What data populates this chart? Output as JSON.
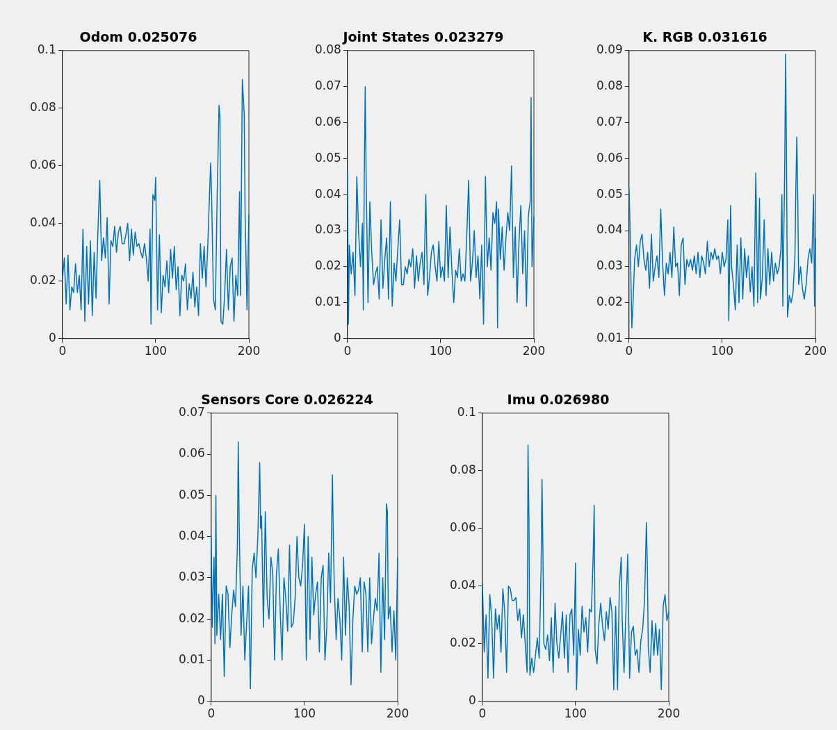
{
  "chart_data": [
    {
      "type": "line",
      "title": "Odom 0.025076",
      "xlim": [
        0,
        200
      ],
      "xticks": [
        0,
        100,
        200
      ],
      "ylim": [
        0,
        0.1
      ],
      "yticks": [
        0,
        0.02,
        0.04,
        0.06,
        0.08,
        0.1
      ],
      "grid": false,
      "legend": false,
      "x": [
        0,
        2,
        4,
        6,
        8,
        10,
        12,
        14,
        16,
        18,
        20,
        22,
        24,
        26,
        28,
        30,
        32,
        34,
        36,
        38,
        40,
        42,
        44,
        46,
        48,
        50,
        52,
        54,
        56,
        58,
        60,
        62,
        64,
        66,
        68,
        70,
        72,
        74,
        76,
        78,
        80,
        82,
        84,
        86,
        88,
        90,
        92,
        94,
        95,
        97,
        99,
        100,
        102,
        104,
        106,
        108,
        110,
        112,
        114,
        116,
        118,
        120,
        122,
        124,
        126,
        128,
        130,
        132,
        134,
        136,
        138,
        140,
        142,
        144,
        146,
        148,
        150,
        152,
        154,
        156,
        157,
        159,
        160,
        162,
        164,
        166,
        168,
        169,
        170,
        172,
        174,
        176,
        178,
        180,
        182,
        184,
        186,
        188,
        190,
        191,
        193,
        195,
        196,
        198,
        200
      ],
      "series": [
        {
          "color": "#0072bd",
          "values": [
            0.021,
            0.028,
            0.012,
            0.029,
            0.01,
            0.018,
            0.016,
            0.026,
            0.016,
            0.022,
            0.01,
            0.038,
            0.006,
            0.032,
            0.012,
            0.034,
            0.008,
            0.03,
            0.014,
            0.037,
            0.055,
            0.027,
            0.035,
            0.028,
            0.042,
            0.012,
            0.034,
            0.032,
            0.039,
            0.03,
            0.037,
            0.039,
            0.033,
            0.033,
            0.036,
            0.04,
            0.027,
            0.038,
            0.029,
            0.037,
            0.032,
            0.033,
            0.03,
            0.028,
            0.033,
            0.028,
            0.02,
            0.038,
            0.005,
            0.05,
            0.048,
            0.056,
            0.01,
            0.036,
            0.009,
            0.022,
            0.018,
            0.027,
            0.016,
            0.031,
            0.021,
            0.032,
            0.017,
            0.025,
            0.008,
            0.022,
            0.02,
            0.026,
            0.01,
            0.019,
            0.014,
            0.023,
            0.011,
            0.018,
            0.008,
            0.033,
            0.021,
            0.032,
            0.018,
            0.033,
            0.043,
            0.061,
            0.05,
            0.014,
            0.01,
            0.05,
            0.081,
            0.077,
            0.006,
            0.005,
            0.015,
            0.031,
            0.01,
            0.025,
            0.028,
            0.006,
            0.022,
            0.015,
            0.051,
            0.015,
            0.09,
            0.078,
            0.042,
            0.01,
            0.043
          ]
        }
      ]
    },
    {
      "type": "line",
      "title": "Joint States 0.023279",
      "xlim": [
        0,
        200
      ],
      "xticks": [
        0,
        100,
        200
      ],
      "ylim": [
        0,
        0.08
      ],
      "yticks": [
        0,
        0.01,
        0.02,
        0.03,
        0.04,
        0.05,
        0.06,
        0.07,
        0.08
      ],
      "grid": false,
      "legend": false,
      "x": [
        0,
        1,
        2,
        4,
        6,
        8,
        10,
        12,
        14,
        16,
        17,
        18,
        19,
        20,
        22,
        24,
        26,
        28,
        30,
        32,
        34,
        36,
        38,
        40,
        42,
        44,
        46,
        48,
        50,
        52,
        54,
        56,
        58,
        60,
        62,
        64,
        66,
        68,
        70,
        72,
        74,
        76,
        78,
        80,
        82,
        84,
        86,
        88,
        90,
        92,
        94,
        96,
        98,
        100,
        102,
        104,
        106,
        108,
        110,
        112,
        114,
        116,
        118,
        120,
        122,
        124,
        126,
        128,
        130,
        132,
        134,
        136,
        138,
        140,
        142,
        144,
        146,
        148,
        150,
        152,
        154,
        156,
        158,
        160,
        161,
        162,
        164,
        166,
        168,
        170,
        172,
        174,
        176,
        178,
        180,
        182,
        184,
        186,
        188,
        190,
        192,
        194,
        196,
        197,
        198,
        200
      ],
      "series": [
        {
          "color": "#0072bd",
          "values": [
            0.046,
            0.004,
            0.026,
            0.018,
            0.024,
            0.012,
            0.045,
            0.029,
            0.02,
            0.032,
            0.008,
            0.045,
            0.07,
            0.045,
            0.01,
            0.038,
            0.024,
            0.015,
            0.018,
            0.02,
            0.011,
            0.033,
            0.014,
            0.022,
            0.028,
            0.011,
            0.038,
            0.009,
            0.021,
            0.016,
            0.025,
            0.033,
            0.015,
            0.015,
            0.02,
            0.018,
            0.022,
            0.02,
            0.025,
            0.014,
            0.023,
            0.016,
            0.021,
            0.024,
            0.015,
            0.04,
            0.012,
            0.017,
            0.024,
            0.026,
            0.02,
            0.016,
            0.027,
            0.017,
            0.02,
            0.016,
            0.037,
            0.017,
            0.031,
            0.019,
            0.01,
            0.019,
            0.017,
            0.025,
            0.016,
            0.018,
            0.016,
            0.029,
            0.044,
            0.016,
            0.021,
            0.03,
            0.017,
            0.023,
            0.011,
            0.026,
            0.004,
            0.045,
            0.02,
            0.028,
            0.019,
            0.035,
            0.032,
            0.038,
            0.003,
            0.036,
            0.022,
            0.031,
            0.019,
            0.028,
            0.035,
            0.03,
            0.048,
            0.017,
            0.031,
            0.01,
            0.027,
            0.037,
            0.018,
            0.03,
            0.009,
            0.034,
            0.038,
            0.067,
            0.02,
            0.034
          ]
        }
      ]
    },
    {
      "type": "line",
      "title": "K. RGB 0.031616",
      "xlim": [
        0,
        200
      ],
      "xticks": [
        0,
        100,
        200
      ],
      "ylim": [
        0.01,
        0.09
      ],
      "yticks": [
        0.01,
        0.02,
        0.03,
        0.04,
        0.05,
        0.06,
        0.07,
        0.08,
        0.09
      ],
      "grid": false,
      "legend": false,
      "x": [
        0,
        1,
        2,
        3,
        4,
        6,
        8,
        10,
        12,
        14,
        16,
        18,
        20,
        22,
        24,
        26,
        28,
        30,
        32,
        34,
        36,
        38,
        40,
        42,
        44,
        46,
        48,
        50,
        52,
        54,
        56,
        58,
        60,
        62,
        64,
        66,
        68,
        70,
        72,
        74,
        76,
        78,
        80,
        82,
        84,
        86,
        88,
        90,
        92,
        94,
        96,
        98,
        100,
        102,
        104,
        106,
        107,
        109,
        110,
        112,
        114,
        116,
        118,
        120,
        122,
        124,
        126,
        128,
        130,
        132,
        134,
        136,
        138,
        140,
        141,
        143,
        145,
        147,
        149,
        151,
        153,
        155,
        157,
        159,
        161,
        163,
        164,
        165,
        167,
        168,
        169,
        170,
        172,
        174,
        176,
        178,
        179,
        180,
        181,
        182,
        184,
        186,
        188,
        190,
        192,
        194,
        196,
        198,
        199,
        200
      ],
      "series": [
        {
          "color": "#0072bd",
          "values": [
            0.052,
            0.042,
            0.027,
            0.013,
            0.018,
            0.032,
            0.036,
            0.03,
            0.037,
            0.039,
            0.032,
            0.029,
            0.034,
            0.024,
            0.039,
            0.026,
            0.03,
            0.033,
            0.027,
            0.046,
            0.031,
            0.022,
            0.031,
            0.028,
            0.034,
            0.027,
            0.041,
            0.03,
            0.031,
            0.022,
            0.036,
            0.038,
            0.025,
            0.032,
            0.03,
            0.032,
            0.029,
            0.033,
            0.028,
            0.034,
            0.027,
            0.033,
            0.031,
            0.028,
            0.037,
            0.03,
            0.034,
            0.032,
            0.035,
            0.032,
            0.033,
            0.028,
            0.034,
            0.03,
            0.032,
            0.043,
            0.015,
            0.047,
            0.03,
            0.025,
            0.018,
            0.036,
            0.02,
            0.038,
            0.021,
            0.035,
            0.027,
            0.033,
            0.023,
            0.03,
            0.019,
            0.056,
            0.02,
            0.049,
            0.021,
            0.027,
            0.043,
            0.022,
            0.035,
            0.025,
            0.034,
            0.026,
            0.031,
            0.028,
            0.03,
            0.035,
            0.05,
            0.019,
            0.057,
            0.089,
            0.058,
            0.016,
            0.022,
            0.02,
            0.023,
            0.033,
            0.052,
            0.066,
            0.05,
            0.025,
            0.03,
            0.024,
            0.021,
            0.025,
            0.032,
            0.035,
            0.031,
            0.05,
            0.019,
            0.038
          ]
        }
      ]
    },
    {
      "type": "line",
      "title": "Sensors Core 0.026224",
      "xlim": [
        0,
        200
      ],
      "xticks": [
        0,
        100,
        200
      ],
      "ylim": [
        0,
        0.07
      ],
      "yticks": [
        0,
        0.01,
        0.02,
        0.03,
        0.04,
        0.05,
        0.06,
        0.07
      ],
      "grid": false,
      "legend": false,
      "x": [
        0,
        1,
        2,
        3,
        4,
        5,
        6,
        8,
        10,
        12,
        14,
        16,
        18,
        20,
        22,
        24,
        26,
        28,
        29,
        30,
        32,
        34,
        36,
        38,
        40,
        42,
        44,
        46,
        48,
        50,
        52,
        53,
        54,
        56,
        58,
        60,
        62,
        64,
        66,
        68,
        70,
        72,
        74,
        76,
        78,
        80,
        82,
        84,
        86,
        88,
        90,
        92,
        94,
        96,
        98,
        100,
        102,
        104,
        106,
        108,
        110,
        112,
        114,
        116,
        118,
        120,
        122,
        124,
        126,
        128,
        130,
        131,
        132,
        134,
        136,
        138,
        140,
        142,
        144,
        146,
        148,
        150,
        152,
        154,
        156,
        158,
        160,
        162,
        164,
        166,
        168,
        170,
        172,
        174,
        176,
        178,
        180,
        182,
        184,
        186,
        188,
        189,
        190,
        192,
        194,
        196,
        198,
        200
      ],
      "series": [
        {
          "color": "#0072bd",
          "values": [
            0.04,
            0.018,
            0.028,
            0.035,
            0.014,
            0.05,
            0.016,
            0.026,
            0.015,
            0.026,
            0.006,
            0.028,
            0.026,
            0.013,
            0.021,
            0.027,
            0.023,
            0.037,
            0.063,
            0.043,
            0.016,
            0.028,
            0.01,
            0.019,
            0.028,
            0.003,
            0.032,
            0.036,
            0.03,
            0.04,
            0.058,
            0.042,
            0.045,
            0.018,
            0.046,
            0.025,
            0.02,
            0.035,
            0.031,
            0.01,
            0.031,
            0.037,
            0.022,
            0.01,
            0.03,
            0.025,
            0.017,
            0.038,
            0.018,
            0.019,
            0.025,
            0.04,
            0.03,
            0.028,
            0.033,
            0.043,
            0.01,
            0.04,
            0.015,
            0.035,
            0.021,
            0.026,
            0.029,
            0.012,
            0.03,
            0.033,
            0.01,
            0.018,
            0.036,
            0.024,
            0.055,
            0.04,
            0.028,
            0.015,
            0.025,
            0.02,
            0.01,
            0.035,
            0.016,
            0.03,
            0.023,
            0.004,
            0.02,
            0.028,
            0.026,
            0.027,
            0.03,
            0.012,
            0.029,
            0.026,
            0.012,
            0.03,
            0.014,
            0.02,
            0.025,
            0.022,
            0.036,
            0.007,
            0.03,
            0.015,
            0.048,
            0.046,
            0.02,
            0.023,
            0.012,
            0.022,
            0.01,
            0.035
          ]
        }
      ]
    },
    {
      "type": "line",
      "title": "Imu 0.026980",
      "xlim": [
        0,
        200
      ],
      "xticks": [
        0,
        100,
        200
      ],
      "ylim": [
        0,
        0.1
      ],
      "yticks": [
        0,
        0.02,
        0.04,
        0.06,
        0.08,
        0.1
      ],
      "grid": false,
      "legend": false,
      "x": [
        0,
        1,
        2,
        4,
        6,
        8,
        10,
        12,
        14,
        16,
        18,
        20,
        22,
        24,
        26,
        28,
        30,
        32,
        34,
        36,
        38,
        40,
        42,
        44,
        46,
        48,
        49,
        50,
        51,
        53,
        55,
        57,
        59,
        61,
        63,
        64,
        65,
        66,
        68,
        70,
        72,
        74,
        76,
        78,
        80,
        82,
        84,
        86,
        88,
        90,
        92,
        94,
        96,
        98,
        100,
        101,
        103,
        105,
        107,
        109,
        111,
        113,
        115,
        117,
        119,
        120,
        121,
        123,
        125,
        127,
        129,
        131,
        133,
        135,
        137,
        139,
        141,
        143,
        145,
        147,
        149,
        150,
        152,
        154,
        156,
        158,
        160,
        162,
        164,
        166,
        168,
        170,
        172,
        174,
        176,
        177,
        178,
        180,
        182,
        184,
        186,
        188,
        190,
        192,
        194,
        196,
        198,
        200
      ],
      "series": [
        {
          "color": "#0072bd",
          "values": [
            0.041,
            0.03,
            0.017,
            0.03,
            0.008,
            0.037,
            0.029,
            0.008,
            0.032,
            0.025,
            0.03,
            0.017,
            0.039,
            0.031,
            0.01,
            0.04,
            0.039,
            0.035,
            0.035,
            0.036,
            0.028,
            0.032,
            0.022,
            0.03,
            0.02,
            0.01,
            0.089,
            0.063,
            0.009,
            0.015,
            0.01,
            0.016,
            0.022,
            0.015,
            0.046,
            0.077,
            0.052,
            0.02,
            0.018,
            0.023,
            0.014,
            0.029,
            0.01,
            0.034,
            0.02,
            0.015,
            0.023,
            0.031,
            0.015,
            0.03,
            0.01,
            0.03,
            0.032,
            0.016,
            0.048,
            0.004,
            0.025,
            0.016,
            0.033,
            0.024,
            0.029,
            0.017,
            0.032,
            0.031,
            0.052,
            0.068,
            0.018,
            0.013,
            0.027,
            0.034,
            0.026,
            0.021,
            0.031,
            0.025,
            0.036,
            0.031,
            0.004,
            0.033,
            0.004,
            0.04,
            0.05,
            0.029,
            0.01,
            0.031,
            0.051,
            0.008,
            0.024,
            0.026,
            0.016,
            0.018,
            0.01,
            0.021,
            0.025,
            0.035,
            0.062,
            0.047,
            0.019,
            0.01,
            0.028,
            0.016,
            0.027,
            0.016,
            0.025,
            0.004,
            0.033,
            0.037,
            0.028,
            0.031
          ]
        }
      ]
    }
  ]
}
